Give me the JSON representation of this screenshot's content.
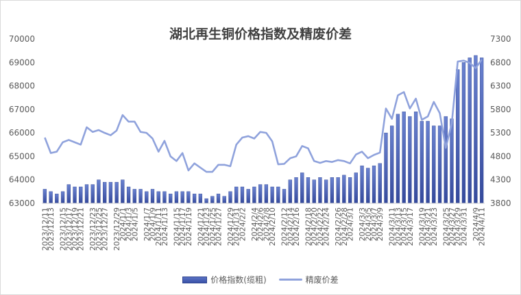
{
  "chart_data": {
    "type": "bar+line",
    "title": "湖北再生铜价格指数及精废价差",
    "colors": {
      "bar": "#4a62b6",
      "line": "#8fa2dc"
    },
    "y_left": {
      "min": 63000,
      "max": 70000,
      "ticks": [
        "63000",
        "64000",
        "65000",
        "66000",
        "67000",
        "68000",
        "69000",
        "70000"
      ]
    },
    "y_right": {
      "min": 3800,
      "max": 7300,
      "ticks": [
        "3800",
        "4300",
        "4800",
        "5300",
        "5800",
        "6300",
        "6800",
        "7300"
      ]
    },
    "x_tick_labels": [
      "2023/12/11",
      "2023/12/13",
      "2023/12/15",
      "2023/12/17",
      "2023/12/19",
      "2023/12/21",
      "2023/12/23",
      "2023/12/25",
      "2023/12/27",
      "2023/12/29",
      "2024/1/1",
      "2024/1/3",
      "2024/1/5",
      "2024/1/7",
      "2024/1/9",
      "2024/1/11",
      "2024/1/13",
      "2024/1/15",
      "2024/1/17",
      "2024/1/19",
      "2024/1/21",
      "2024/1/23",
      "2024/1/25",
      "2024/1/27",
      "2024/1/29",
      "2024/1/31",
      "2024/2/2",
      "2024/2/4",
      "2024/2/6",
      "2024/2/8",
      "2024/2/10",
      "2024/2/12",
      "2024/2/14",
      "2024/2/16",
      "2024/2/18",
      "2024/2/20",
      "2024/2/22",
      "2024/2/24",
      "2024/2/26",
      "2024/2/28",
      "2024/3/1",
      "2024/3/3",
      "2024/3/5",
      "2024/3/7",
      "2024/3/9",
      "2024/3/11",
      "2024/3/13",
      "2024/3/15",
      "2024/3/17",
      "2024/3/19",
      "2024/3/21",
      "2024/3/23",
      "2024/3/25",
      "2024/3/27",
      "2024/3/29",
      "2024/3/31",
      "2024/4/9",
      "2024/4/11"
    ],
    "series": [
      {
        "name": "价格指数(缆粗)",
        "type": "bar",
        "axis": "left",
        "values": [
          63600,
          63500,
          63400,
          63500,
          63800,
          63700,
          63700,
          63800,
          63800,
          64000,
          63900,
          63900,
          63900,
          64000,
          63700,
          63600,
          63600,
          63500,
          63600,
          63500,
          63500,
          63400,
          63500,
          63500,
          63500,
          63400,
          63400,
          63200,
          63300,
          63400,
          63300,
          63500,
          63700,
          63700,
          63600,
          63700,
          63800,
          63800,
          63700,
          63700,
          63600,
          64000,
          64100,
          64300,
          64100,
          64000,
          64100,
          64000,
          64100,
          64100,
          64200,
          64100,
          64300,
          64600,
          64500,
          64600,
          64700,
          66000,
          66300,
          66800,
          66900,
          66700,
          66900,
          66500,
          66500,
          66300,
          66300,
          66700,
          66600,
          68700,
          69000,
          69200,
          69300,
          69200
        ]
      },
      {
        "name": "精废价差",
        "type": "line",
        "axis": "right",
        "values": [
          5200,
          4870,
          4900,
          5100,
          5150,
          5100,
          5050,
          5420,
          5320,
          5360,
          5300,
          5250,
          5350,
          5680,
          5540,
          5540,
          5320,
          5300,
          5180,
          4900,
          5130,
          4800,
          4700,
          4870,
          4500,
          4650,
          4560,
          4470,
          4470,
          4620,
          4620,
          4590,
          5050,
          5200,
          5230,
          5180,
          5320,
          5300,
          5120,
          4630,
          4640,
          4760,
          4800,
          5020,
          4970,
          4700,
          4660,
          4700,
          4680,
          4720,
          4700,
          4650,
          4840,
          4900,
          4760,
          4830,
          4880,
          5820,
          5600,
          6100,
          6170,
          5820,
          6030,
          5580,
          5650,
          5960,
          5720,
          4980,
          5500,
          6820,
          6840,
          6790,
          6680,
          6860
        ]
      }
    ],
    "legend": [
      {
        "label": "价格指数(缆粗)",
        "kind": "bar"
      },
      {
        "label": "精废价差",
        "kind": "line"
      }
    ],
    "grid": false,
    "legend_position": "bottom"
  }
}
